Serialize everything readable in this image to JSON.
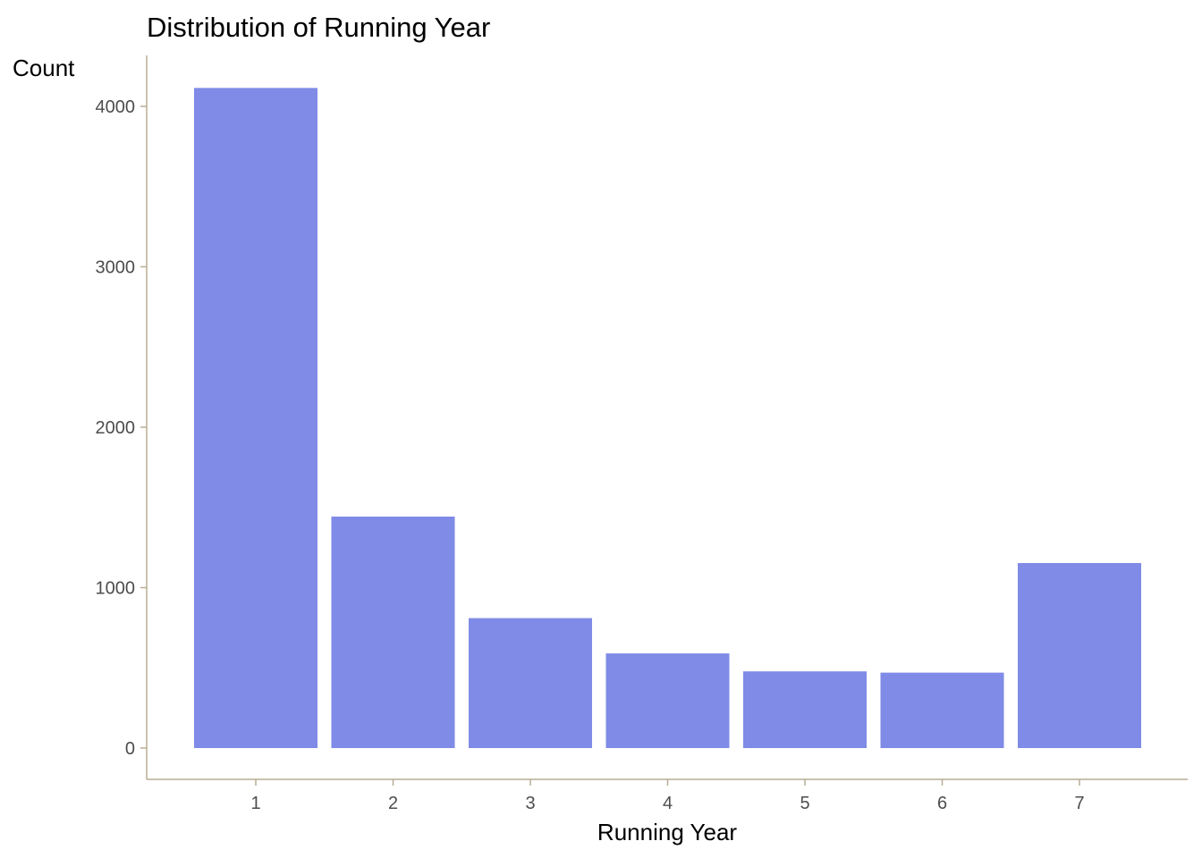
{
  "chart_data": {
    "type": "bar",
    "title": "Distribution of Running Year",
    "xlabel": "Running Year",
    "ylabel": "Count",
    "categories": [
      "1",
      "2",
      "3",
      "4",
      "5",
      "6",
      "7"
    ],
    "values": [
      4115,
      1443,
      810,
      590,
      478,
      470,
      1153
    ],
    "ylim": [
      -200,
      4300
    ],
    "yticks": [
      0,
      1000,
      2000,
      3000,
      4000
    ],
    "grid": false,
    "legend": "none",
    "colors": {
      "bar": "#7f8be6",
      "axis_line": "#b8ad94",
      "tick_text": "#4d4d4d",
      "text": "#000000"
    }
  }
}
